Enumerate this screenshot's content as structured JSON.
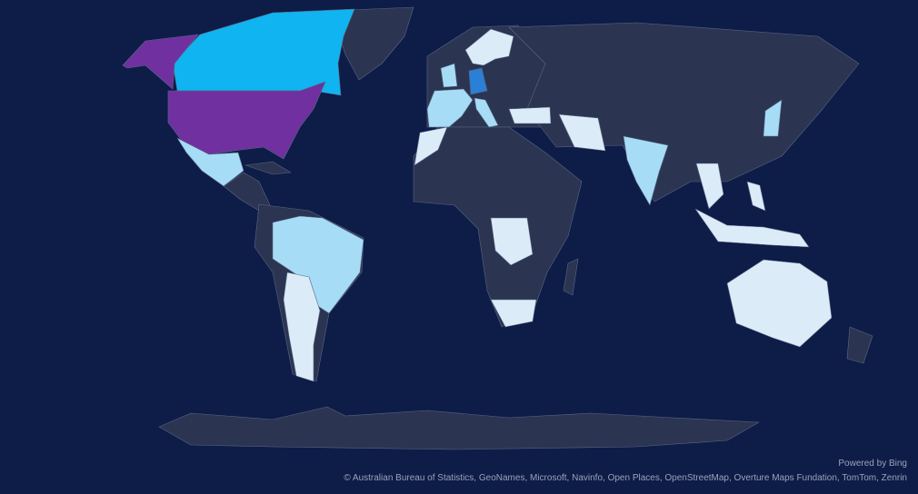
{
  "map": {
    "type": "filled-map",
    "background_color": "#0e1c48",
    "default_land_color": "#2b3552",
    "border_color": "#5a6684",
    "palette": {
      "lightest": "#dcebf8",
      "light_blue": "#a6dcf6",
      "cyan": "#0fb4f0",
      "blue": "#2a7fd6",
      "purple": "#7030a0"
    }
  },
  "footer": {
    "powered_by": "Powered by Bing",
    "attribution": "© Australian Bureau of Statistics, GeoNames, Microsoft, Navinfo, Open Places, OpenStreetMap, Overture Maps Fundation, TomTom, Zenrin"
  }
}
